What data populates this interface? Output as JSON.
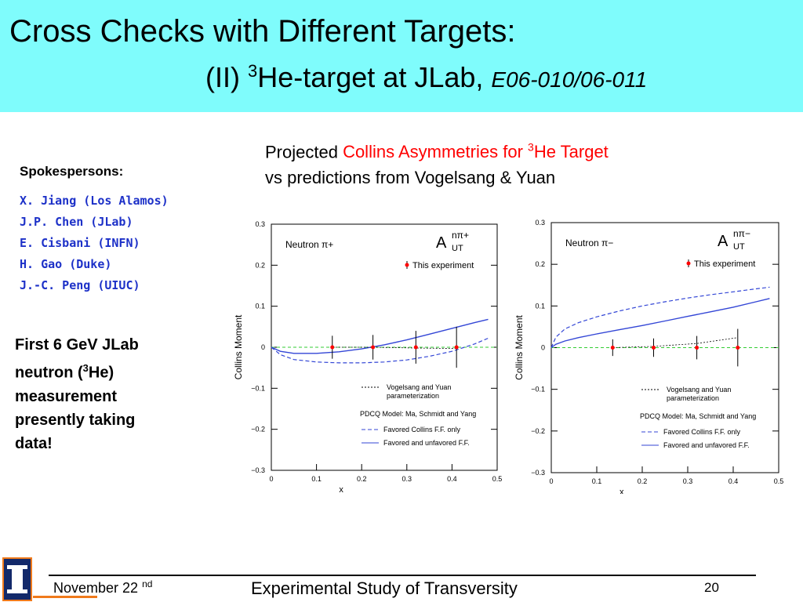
{
  "header": {
    "title_line1": "Cross Checks with Different Targets:",
    "title_line2_prefix": "(II) ",
    "title_line2_sup": "3",
    "title_line2_main": "He-target at JLab, ",
    "title_line2_code": "E06-010/06-011"
  },
  "subtitle": {
    "prefix": "Projected ",
    "red_main": "Collins Asymmetries for ",
    "red_sup": "3",
    "red_end": "He Target",
    "line2": "vs predictions from Vogelsang & Yuan"
  },
  "spokespersons": {
    "title": "Spokespersons:",
    "names": [
      "X. Jiang (Los Alamos)",
      "J.P. Chen (JLab)",
      "E. Cisbani (INFN)",
      "H. Gao (Duke)",
      "J.-C. Peng (UIUC)"
    ]
  },
  "note": {
    "line1": "First 6 GeV JLab",
    "line2_pre": "neutron (",
    "line2_sup": "3",
    "line2_post": "He)",
    "line3": "measurement",
    "line4": "presently taking",
    "line5": "data!"
  },
  "chart_data": [
    {
      "type": "line",
      "panel_label": "Neutron  π+",
      "asymmetry_label": "A",
      "asymmetry_sup": "nπ+",
      "asymmetry_sub": "UT",
      "xlabel": "x",
      "ylabel": "Collins Moment",
      "xlim": [
        0,
        0.5
      ],
      "ylim": [
        -0.3,
        0.3
      ],
      "x_ticks": [
        "0",
        "0.1",
        "0.2",
        "0.3",
        "0.4",
        "0.5"
      ],
      "y_ticks": [
        "0.3",
        "0.2",
        "0.1",
        "0",
        "−0.1",
        "−0.2",
        "−0.3"
      ],
      "legend_experiment": "This experiment",
      "legend_vy": "Vogelsang and Yuan parameterization",
      "legend_vy_line1": "Vogelsang and Yuan",
      "legend_vy_line2": "parameterization",
      "legend_pdcq": "PDCQ Model: Ma, Schmidt and Yang",
      "legend_dashed": "Favored Collins F.F. only",
      "legend_solid": "Favored and unfavored F.F.",
      "experiment": {
        "x": [
          0.135,
          0.225,
          0.32,
          0.41
        ],
        "y": [
          0,
          0,
          0,
          0
        ],
        "err": [
          0.028,
          0.03,
          0.04,
          0.05
        ]
      },
      "vogelsang_yuan": {
        "x": [
          0.135,
          0.225,
          0.32,
          0.41
        ],
        "y": [
          0,
          0,
          -0.002,
          -0.003
        ]
      },
      "favored_only": {
        "x": [
          0,
          0.02,
          0.05,
          0.1,
          0.15,
          0.2,
          0.25,
          0.3,
          0.35,
          0.4,
          0.45,
          0.48
        ],
        "y": [
          0,
          -0.018,
          -0.03,
          -0.036,
          -0.038,
          -0.038,
          -0.036,
          -0.031,
          -0.022,
          -0.01,
          0.008,
          0.022
        ]
      },
      "favored_unfavored": {
        "x": [
          0,
          0.02,
          0.05,
          0.1,
          0.15,
          0.2,
          0.25,
          0.3,
          0.35,
          0.4,
          0.45,
          0.48
        ],
        "y": [
          0,
          -0.01,
          -0.015,
          -0.015,
          -0.011,
          -0.004,
          0.006,
          0.018,
          0.032,
          0.046,
          0.06,
          0.068
        ]
      },
      "zero_line_color": "#33cc33",
      "model_color": "#3346d6",
      "experiment_color": "#ff0000"
    },
    {
      "type": "line",
      "panel_label": "Neutron  π−",
      "asymmetry_label": "A",
      "asymmetry_sup": "nπ−",
      "asymmetry_sub": "UT",
      "xlabel": "x",
      "ylabel": "Collins Moment",
      "xlim": [
        0,
        0.5
      ],
      "ylim": [
        -0.3,
        0.3
      ],
      "x_ticks": [
        "0",
        "0.1",
        "0.2",
        "0.3",
        "0.4",
        "0.5"
      ],
      "y_ticks": [
        "0.3",
        "0.2",
        "0.1",
        "0",
        "−0.1",
        "−0.2",
        "−0.3"
      ],
      "legend_experiment": "This experiment",
      "legend_vy": "Vogelsang and Yuan parameterization",
      "legend_vy_line1": "Vogelsang and Yuan",
      "legend_vy_line2": "parameterization",
      "legend_pdcq": "PDCQ Model: Ma, Schmidt and Yang",
      "legend_dashed": "Favored Collins F.F. only",
      "legend_solid": "Favored and unfavored F.F.",
      "experiment": {
        "x": [
          0.135,
          0.225,
          0.32,
          0.41
        ],
        "y": [
          0,
          0,
          0,
          0
        ],
        "err": [
          0.02,
          0.022,
          0.028,
          0.045
        ]
      },
      "vogelsang_yuan": {
        "x": [
          0.135,
          0.225,
          0.32,
          0.41
        ],
        "y": [
          0,
          0.003,
          0.01,
          0.024
        ]
      },
      "favored_only": {
        "x": [
          0,
          0.01,
          0.03,
          0.06,
          0.1,
          0.15,
          0.2,
          0.25,
          0.3,
          0.35,
          0.4,
          0.45,
          0.48
        ],
        "y": [
          0,
          0.025,
          0.045,
          0.06,
          0.074,
          0.088,
          0.1,
          0.11,
          0.119,
          0.127,
          0.134,
          0.141,
          0.145
        ]
      },
      "favored_unfavored": {
        "x": [
          0,
          0.01,
          0.03,
          0.06,
          0.1,
          0.15,
          0.2,
          0.25,
          0.3,
          0.35,
          0.4,
          0.45,
          0.48
        ],
        "y": [
          0,
          0.008,
          0.016,
          0.024,
          0.033,
          0.043,
          0.053,
          0.064,
          0.075,
          0.086,
          0.097,
          0.11,
          0.118
        ]
      },
      "zero_line_color": "#33cc33",
      "model_color": "#3346d6",
      "experiment_color": "#ff0000"
    }
  ],
  "footer": {
    "date": "November 22 ",
    "date_sup": "nd",
    "center": "Experimental Study of Transversity",
    "page": "20"
  }
}
